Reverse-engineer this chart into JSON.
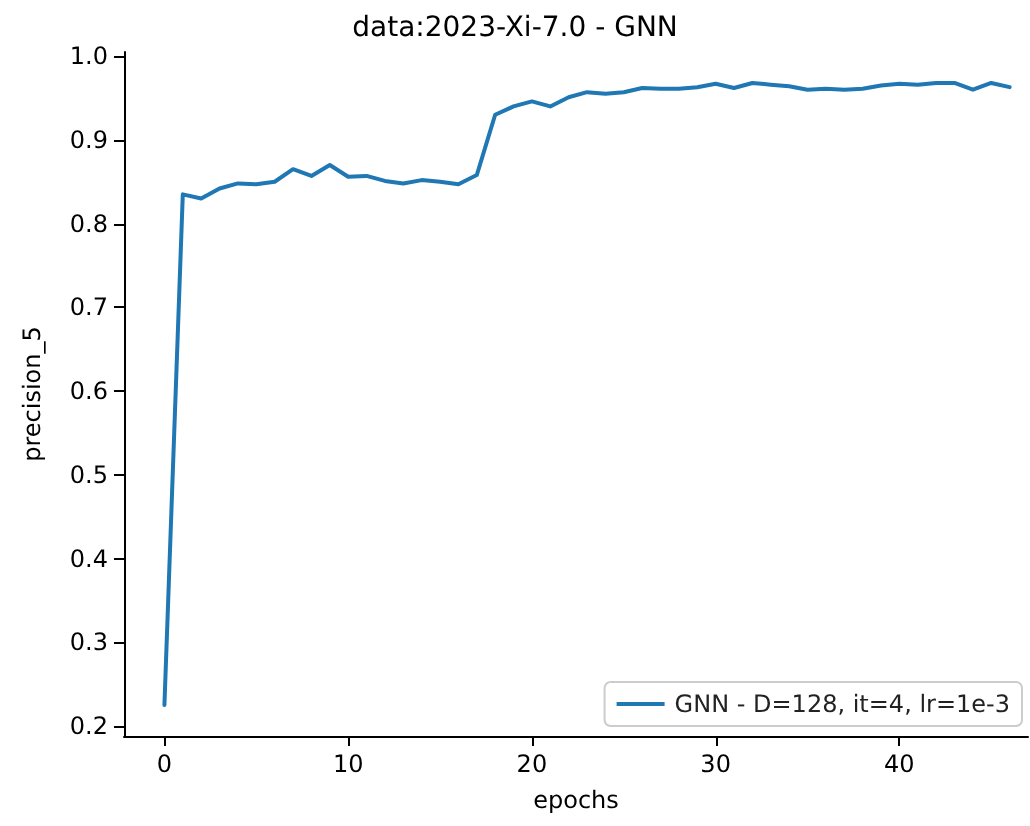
{
  "chart_data": {
    "type": "line",
    "title": "data:2023-Xi-7.0 - GNN",
    "xlabel": "epochs",
    "ylabel": "precision_5",
    "x": [
      0,
      1,
      2,
      3,
      4,
      5,
      6,
      7,
      8,
      9,
      10,
      11,
      12,
      13,
      14,
      15,
      16,
      17,
      18,
      19,
      20,
      21,
      22,
      23,
      24,
      25,
      26,
      27,
      28,
      29,
      30,
      31,
      32,
      33,
      34,
      35,
      36,
      37,
      38,
      39,
      40,
      41,
      42,
      43,
      44,
      45,
      46
    ],
    "series": [
      {
        "name": "GNN - D=128, it=4, lr=1e-3",
        "color": "#1f77b4",
        "values": [
          0.225,
          0.835,
          0.83,
          0.842,
          0.848,
          0.847,
          0.85,
          0.865,
          0.857,
          0.87,
          0.856,
          0.857,
          0.851,
          0.848,
          0.852,
          0.85,
          0.847,
          0.858,
          0.93,
          0.94,
          0.946,
          0.94,
          0.951,
          0.957,
          0.955,
          0.957,
          0.962,
          0.961,
          0.961,
          0.963,
          0.967,
          0.962,
          0.968,
          0.966,
          0.964,
          0.96,
          0.961,
          0.96,
          0.961,
          0.965,
          0.967,
          0.966,
          0.968,
          0.968,
          0.96,
          0.968,
          0.963
        ]
      }
    ],
    "xlim": [
      -2.2,
      47
    ],
    "xticks": [
      0,
      10,
      20,
      30,
      40
    ],
    "ylim": [
      0.188,
      1.005
    ],
    "yticks": [
      {
        "value": 0.2,
        "label": "0.2"
      },
      {
        "value": 0.3,
        "label": "0.3"
      },
      {
        "value": 0.4,
        "label": "0.4"
      },
      {
        "value": 0.5,
        "label": "0.5"
      },
      {
        "value": 0.6,
        "label": "0.6"
      },
      {
        "value": 0.7,
        "label": "0.7"
      },
      {
        "value": 0.8,
        "label": "0.8"
      },
      {
        "value": 0.9,
        "label": "0.9"
      },
      {
        "value": 1.0,
        "label": "1.0"
      }
    ],
    "grid": false,
    "legend": "bottom right",
    "marker": "none",
    "line_style": "solid"
  }
}
